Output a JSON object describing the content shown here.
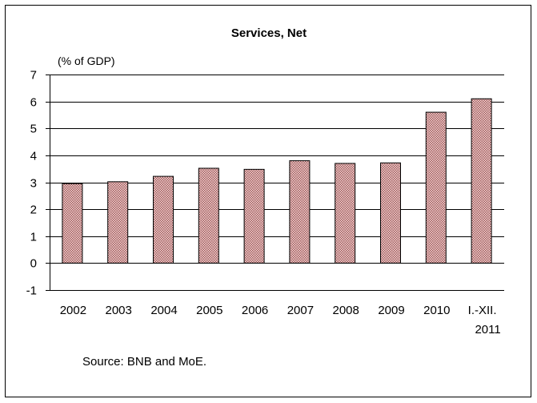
{
  "chart_data": {
    "type": "bar",
    "title": "Services, Net",
    "ylabel": "(% of GDP)",
    "xlabel": "",
    "categories": [
      "2002",
      "2003",
      "2004",
      "2005",
      "2006",
      "2007",
      "2008",
      "2009",
      "2010",
      "I.-XII.\n2011"
    ],
    "values": [
      2.95,
      3.02,
      3.22,
      3.52,
      3.48,
      3.8,
      3.7,
      3.72,
      5.6,
      6.1
    ],
    "ylim": [
      -1,
      7
    ],
    "yticks": [
      -1,
      0,
      1,
      2,
      3,
      4,
      5,
      6,
      7
    ],
    "grid": true,
    "bar_color": "#c98a8a",
    "bar_pattern": "crosshatch",
    "source": "Source: BNB and MoE."
  }
}
